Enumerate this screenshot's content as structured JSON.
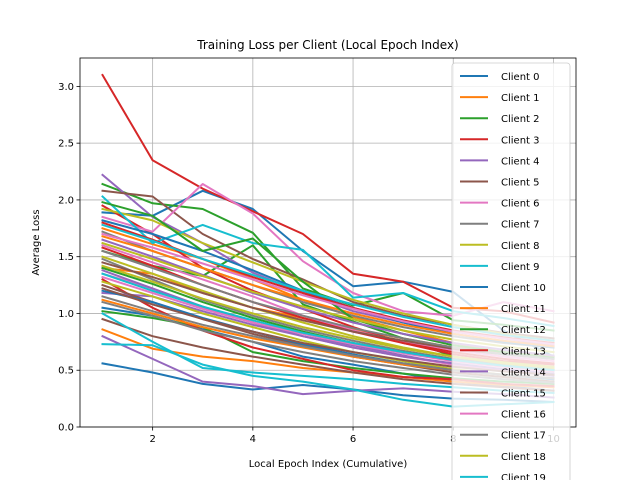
{
  "chart_data": {
    "type": "line",
    "title": "Training Loss per Client (Local Epoch Index)",
    "xlabel": "Local Epoch Index (Cumulative)",
    "ylabel": "Average Loss",
    "xlim": [
      0.55,
      10.45
    ],
    "ylim": [
      0.0,
      3.25
    ],
    "xticks": [
      2,
      4,
      6,
      8,
      10
    ],
    "yticks": [
      0.0,
      0.5,
      1.0,
      1.5,
      2.0,
      2.5,
      3.0
    ],
    "grid": true,
    "legend_position": "top-right",
    "x": [
      1,
      2,
      3,
      4,
      5,
      6,
      7,
      8,
      9,
      10
    ],
    "series": [
      {
        "name": "Client 0",
        "color": "#1f77b4",
        "lines": [
          [
            1.89,
            1.86,
            2.08,
            1.92,
            1.55,
            1.24,
            1.28,
            1.19,
            0.85,
            0.62
          ],
          [
            1.05,
            0.98,
            0.86,
            0.75,
            0.62,
            0.55,
            0.47,
            0.4,
            0.36,
            0.32
          ],
          [
            0.56,
            0.48,
            0.38,
            0.33,
            0.37,
            0.33,
            0.28,
            0.25,
            0.24,
            0.22
          ]
        ]
      },
      {
        "name": "Client 1",
        "color": "#ff7f0e",
        "lines": [
          [
            1.75,
            1.61,
            1.48,
            1.3,
            1.12,
            0.97,
            0.85,
            0.74,
            0.66,
            0.6
          ],
          [
            0.86,
            0.69,
            0.62,
            0.58,
            0.52,
            0.48,
            0.44,
            0.4,
            0.37,
            0.35
          ],
          [
            1.4,
            1.35,
            1.18,
            1.05,
            0.96,
            0.86,
            0.78,
            0.7,
            0.66,
            0.62
          ]
        ]
      },
      {
        "name": "Client 2",
        "color": "#2ca02c",
        "lines": [
          [
            2.14,
            1.97,
            1.92,
            1.71,
            1.22,
            1.07,
            1.18,
            0.94,
            0.9,
            0.85
          ],
          [
            1.55,
            1.42,
            1.33,
            1.6,
            1.08,
            0.93,
            0.78,
            0.62,
            0.56,
            0.5
          ],
          [
            1.02,
            0.96,
            0.88,
            0.66,
            0.58,
            0.52,
            0.47,
            0.43,
            0.4,
            0.38
          ]
        ]
      },
      {
        "name": "Client 3",
        "color": "#d62728",
        "lines": [
          [
            3.1,
            2.35,
            2.1,
            1.9,
            1.7,
            1.35,
            1.28,
            1.05,
            1.02,
            0.92
          ],
          [
            1.95,
            1.7,
            1.4,
            1.2,
            1.04,
            0.88,
            0.74,
            0.64,
            0.58,
            0.55
          ],
          [
            1.3,
            1.05,
            0.85,
            0.7,
            0.6,
            0.5,
            0.44,
            0.42,
            0.38,
            0.36
          ]
        ]
      },
      {
        "name": "Client 4",
        "color": "#9467bd",
        "lines": [
          [
            2.22,
            1.85,
            1.62,
            1.36,
            1.18,
            1.02,
            0.92,
            0.84,
            0.78,
            0.72
          ],
          [
            0.8,
            0.6,
            0.4,
            0.36,
            0.29,
            0.32,
            0.34,
            0.31,
            0.29,
            0.26
          ],
          [
            1.18,
            1.15,
            1.02,
            0.9,
            0.8,
            0.72,
            0.63,
            0.55,
            0.5,
            0.45
          ]
        ]
      },
      {
        "name": "Client 5",
        "color": "#8c564b",
        "lines": [
          [
            2.08,
            2.03,
            1.7,
            1.48,
            1.3,
            1.1,
            0.98,
            0.9,
            0.83,
            0.78
          ],
          [
            1.25,
            1.1,
            0.95,
            0.82,
            0.72,
            0.62,
            0.55,
            0.48,
            0.44,
            0.4
          ],
          [
            0.95,
            0.8,
            0.7,
            0.62,
            0.55,
            0.48,
            0.42,
            0.38,
            0.35,
            0.32
          ]
        ]
      },
      {
        "name": "Client 6",
        "color": "#e377c2",
        "lines": [
          [
            1.85,
            1.72,
            2.14,
            1.88,
            1.46,
            1.18,
            1.02,
            0.98,
            1.1,
            1.02
          ],
          [
            1.6,
            1.45,
            1.3,
            1.15,
            0.98,
            0.85,
            0.75,
            0.68,
            0.62,
            0.58
          ],
          [
            1.35,
            1.22,
            1.05,
            0.92,
            0.8,
            0.7,
            0.62,
            0.55,
            0.5,
            0.46
          ]
        ]
      },
      {
        "name": "Client 7",
        "color": "#7f7f7f",
        "lines": [
          [
            1.72,
            1.55,
            1.4,
            1.25,
            1.1,
            0.98,
            0.88,
            0.8,
            0.74,
            0.7
          ],
          [
            1.48,
            1.3,
            1.12,
            0.98,
            0.86,
            0.76,
            0.67,
            0.6,
            0.55,
            0.51
          ],
          [
            1.1,
            0.98,
            0.85,
            0.75,
            0.66,
            0.58,
            0.52,
            0.46,
            0.42,
            0.39
          ]
        ]
      },
      {
        "name": "Client 8",
        "color": "#bcbd22",
        "lines": [
          [
            1.92,
            1.82,
            1.62,
            1.45,
            1.28,
            1.12,
            1.0,
            0.9,
            0.82,
            0.76
          ],
          [
            1.5,
            1.35,
            1.2,
            1.05,
            0.92,
            0.8,
            0.7,
            0.62,
            0.56,
            0.52
          ],
          [
            1.28,
            1.15,
            1.0,
            0.88,
            0.76,
            0.66,
            0.58,
            0.51,
            0.46,
            0.42
          ]
        ]
      },
      {
        "name": "Client 9",
        "color": "#17becf",
        "lines": [
          [
            2.03,
            1.62,
            1.78,
            1.62,
            1.56,
            1.14,
            1.18,
            1.02,
            0.96,
            0.89
          ],
          [
            1.0,
            0.75,
            0.52,
            0.48,
            0.45,
            0.42,
            0.38,
            0.35,
            0.32,
            0.3
          ],
          [
            0.73,
            0.72,
            0.55,
            0.45,
            0.4,
            0.33,
            0.24,
            0.18,
            0.2,
            0.22
          ]
        ]
      },
      {
        "name": "Client 10",
        "color": "#1f77b4",
        "lines": [
          [
            1.82,
            1.7,
            1.55,
            1.38,
            1.2,
            1.05,
            0.92,
            0.82,
            0.75,
            0.7
          ],
          [
            1.2,
            1.1,
            0.96,
            0.84,
            0.73,
            0.64,
            0.56,
            0.5,
            0.46,
            0.42
          ]
        ]
      },
      {
        "name": "Client 11",
        "color": "#ff7f0e",
        "lines": [
          [
            1.68,
            1.55,
            1.4,
            1.25,
            1.12,
            1.0,
            0.9,
            0.82,
            0.76,
            0.71
          ],
          [
            1.12,
            1.0,
            0.88,
            0.78,
            0.7,
            0.62,
            0.55,
            0.5,
            0.46,
            0.43
          ]
        ]
      },
      {
        "name": "Client 12",
        "color": "#2ca02c",
        "lines": [
          [
            1.98,
            1.86,
            1.55,
            1.66,
            1.28,
            0.95,
            0.82,
            0.72,
            0.66,
            0.61
          ],
          [
            1.4,
            1.26,
            1.1,
            0.96,
            0.84,
            0.74,
            0.66,
            0.59,
            0.54,
            0.5
          ]
        ]
      },
      {
        "name": "Client 13",
        "color": "#d62728",
        "lines": [
          [
            1.8,
            1.65,
            1.48,
            1.32,
            1.18,
            1.05,
            0.94,
            0.85,
            0.79,
            0.74
          ],
          [
            1.58,
            1.42,
            1.25,
            1.1,
            0.96,
            0.84,
            0.74,
            0.66,
            0.6,
            0.56
          ]
        ]
      },
      {
        "name": "Client 14",
        "color": "#9467bd",
        "lines": [
          [
            1.65,
            1.5,
            1.34,
            1.18,
            1.04,
            0.92,
            0.82,
            0.74,
            0.68,
            0.63
          ],
          [
            1.38,
            1.22,
            1.06,
            0.92,
            0.8,
            0.7,
            0.62,
            0.56,
            0.51,
            0.47
          ]
        ]
      },
      {
        "name": "Client 15",
        "color": "#8c564b",
        "lines": [
          [
            1.45,
            1.32,
            1.18,
            1.05,
            0.94,
            0.84,
            0.76,
            0.69,
            0.64,
            0.6
          ],
          [
            1.22,
            1.08,
            0.95,
            0.84,
            0.74,
            0.66,
            0.59,
            0.53,
            0.49,
            0.46
          ]
        ]
      },
      {
        "name": "Client 16",
        "color": "#e377c2",
        "lines": [
          [
            1.7,
            1.58,
            1.44,
            1.3,
            1.16,
            1.04,
            0.93,
            0.84,
            0.78,
            0.73
          ],
          [
            1.32,
            1.18,
            1.04,
            0.92,
            0.82,
            0.73,
            0.65,
            0.58,
            0.53,
            0.49
          ]
        ]
      },
      {
        "name": "Client 17",
        "color": "#7f7f7f",
        "lines": [
          [
            1.55,
            1.4,
            1.25,
            1.1,
            0.98,
            0.87,
            0.78,
            0.7,
            0.64,
            0.6
          ],
          [
            1.15,
            1.02,
            0.9,
            0.8,
            0.71,
            0.63,
            0.56,
            0.5,
            0.46,
            0.43
          ]
        ]
      },
      {
        "name": "Client 18",
        "color": "#bcbd22",
        "lines": [
          [
            1.62,
            1.48,
            1.33,
            1.19,
            1.06,
            0.95,
            0.85,
            0.77,
            0.71,
            0.66
          ],
          [
            1.42,
            1.28,
            1.13,
            1.0,
            0.88,
            0.78,
            0.69,
            0.62,
            0.57,
            0.53
          ]
        ]
      },
      {
        "name": "Client 19",
        "color": "#17becf",
        "lines": [
          [
            1.78,
            1.64,
            1.48,
            1.34,
            1.2,
            1.08,
            0.97,
            0.88,
            0.81,
            0.76
          ],
          [
            1.35,
            1.2,
            1.06,
            0.94,
            0.83,
            0.74,
            0.66,
            0.59,
            0.54,
            0.5
          ]
        ]
      }
    ]
  }
}
